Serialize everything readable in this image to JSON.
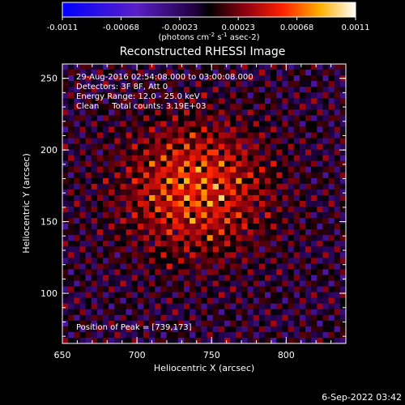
{
  "chart_data": {
    "type": "heatmap",
    "title": "Reconstructed RHESSI Image",
    "xlabel": "Heliocentric X (arcsec)",
    "ylabel": "Heliocentric Y (arcsec)",
    "xlim": [
      650,
      840
    ],
    "ylim": [
      65,
      260
    ],
    "x_ticks": [
      "650",
      "700",
      "750",
      "800"
    ],
    "y_ticks": [
      "100",
      "150",
      "200",
      "250"
    ],
    "annotations": [
      "29-Aug-2016 02:54:08.000 to 03:00:08.000",
      "Detectors: 3F 8F, Att 0",
      "Energy Range: 12.0 - 25.0 keV",
      "Clean     Total counts: 3.19E+03"
    ],
    "peak_label": "Position of Peak = [739,173]",
    "peak": [
      739,
      173
    ],
    "colorscale_range": [
      -0.0011,
      0.0011
    ]
  },
  "colorbar": {
    "tick_labels": [
      "-0.0011",
      "-0.00068",
      "-0.00023",
      "0.00023",
      "0.00068",
      "0.0011"
    ],
    "unit": {
      "pre": "(photons cm",
      "exp1": "-2",
      "mid": " s",
      "exp2": "-1",
      "post": " asec-2)"
    }
  },
  "footer": {
    "timestamp": "6-Sep-2022 03:42"
  }
}
